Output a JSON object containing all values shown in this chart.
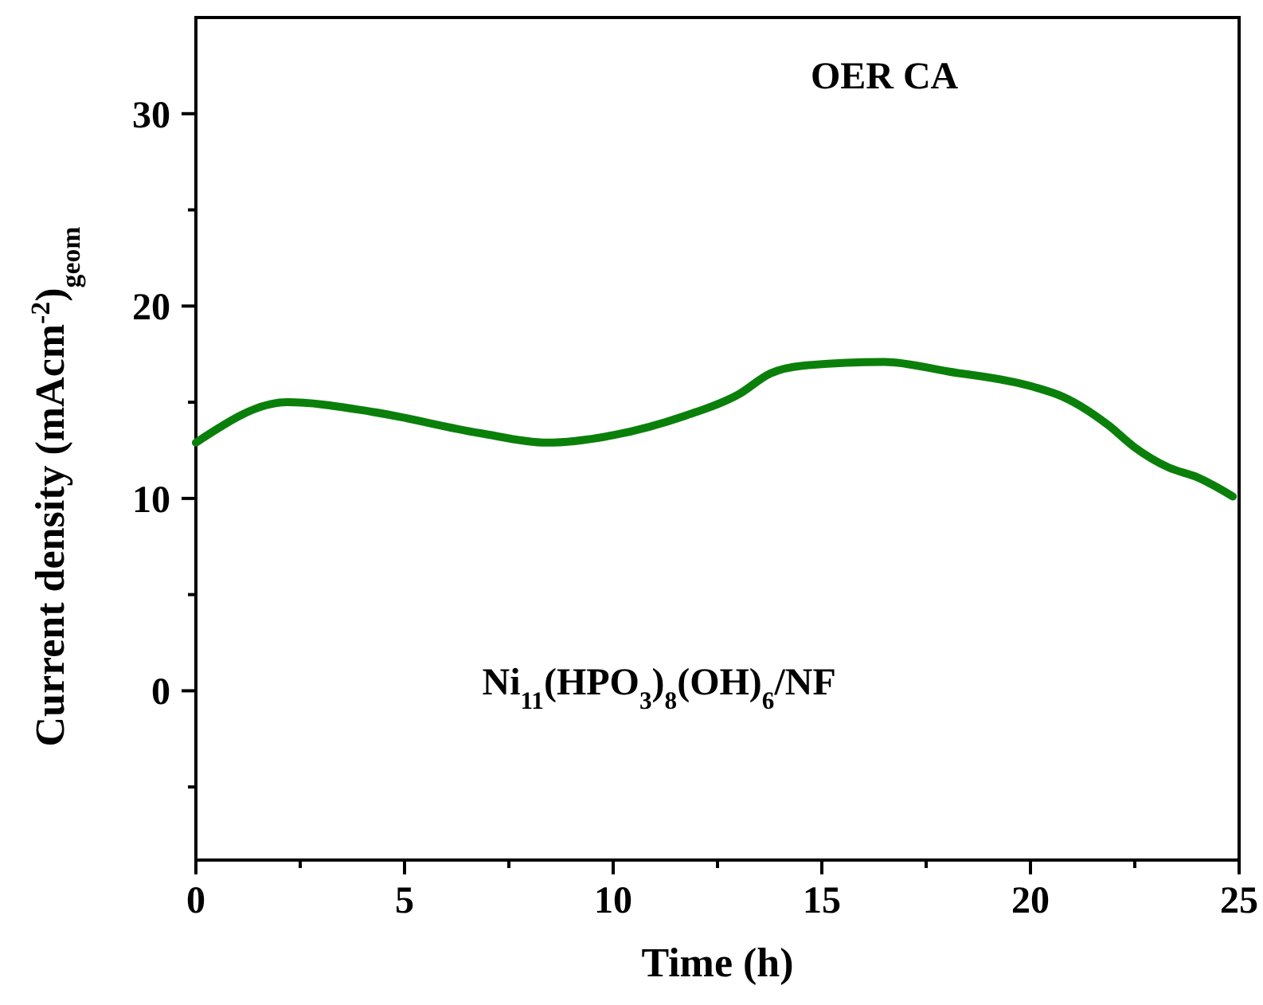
{
  "chart_data": {
    "type": "line",
    "xlabel": "Time (h)",
    "ylabel": "Current density (mAcm$^{-2}$)$_{geom}$",
    "annotations": [
      "OER CA",
      "Ni$_{11}$(HPO$_{3}$)$_{8}$(OH)$_{6}$/NF"
    ],
    "xlim": [
      0,
      25
    ],
    "ylim": [
      -8.8,
      35
    ],
    "xticks": [
      0,
      {
        "value": 2.5,
        "label": null
      },
      5,
      {
        "value": 7.5,
        "label": null
      },
      10,
      {
        "value": 12.5,
        "label": null
      },
      15,
      {
        "value": 17.5,
        "label": null
      },
      20,
      {
        "value": 22.5,
        "label": null
      },
      25
    ],
    "yticks": [
      {
        "value": -5,
        "label": null
      },
      0,
      {
        "value": 5,
        "label": null
      },
      10,
      {
        "value": 15,
        "label": null
      },
      20,
      {
        "value": 25,
        "label": null
      },
      30
    ],
    "line_style": "solid",
    "marker": "none",
    "series": [
      {
        "color": "#0a800a",
        "x": [
          0,
          2.19,
          4.23,
          6.79,
          8.41,
          10.03,
          11.73,
          13.0,
          13.77,
          14.54,
          16.5,
          18.03,
          20.07,
          20.76,
          21.87,
          22.47,
          23.32,
          24.0,
          24.85
        ],
        "values": [
          12.9,
          15.0,
          14.5,
          13.4,
          12.9,
          13.3,
          14.3,
          15.4,
          16.5,
          16.9,
          17.1,
          16.6,
          15.8,
          15.3,
          13.8,
          12.7,
          11.6,
          11.1,
          10.1
        ]
      }
    ]
  }
}
